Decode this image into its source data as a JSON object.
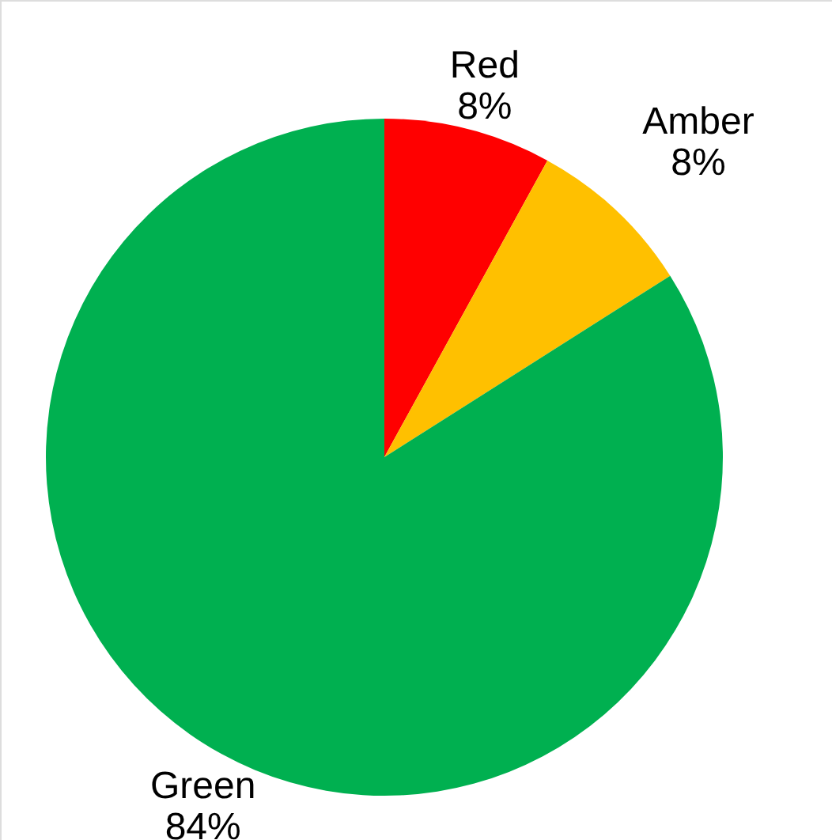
{
  "chart_data": {
    "type": "pie",
    "categories": [
      "Red",
      "Amber",
      "Green"
    ],
    "values": [
      8,
      8,
      84
    ],
    "colors": [
      "#ff0000",
      "#ffc000",
      "#00b050"
    ],
    "value_labels": [
      "8%",
      "8%",
      "84%"
    ]
  }
}
